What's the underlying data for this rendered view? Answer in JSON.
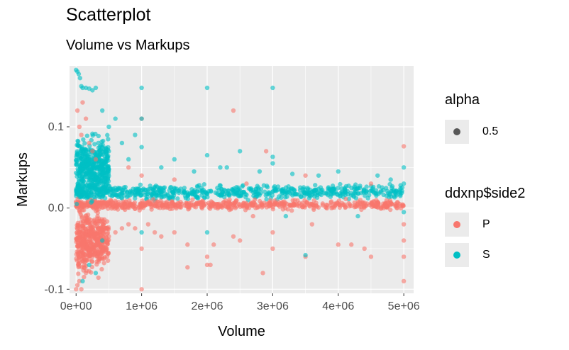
{
  "chart_data": {
    "type": "scatter",
    "title": "Scatterplot",
    "subtitle": "Volume vs Markups",
    "xlabel": "Volume",
    "ylabel": "Markups",
    "xlim": [
      -100000,
      5150000
    ],
    "ylim": [
      -0.105,
      0.175
    ],
    "x_ticks": [
      {
        "value": 0,
        "label": "0e+00"
      },
      {
        "value": 1000000,
        "label": "1e+06"
      },
      {
        "value": 2000000,
        "label": "2e+06"
      },
      {
        "value": 3000000,
        "label": "3e+06"
      },
      {
        "value": 4000000,
        "label": "4e+06"
      },
      {
        "value": 5000000,
        "label": "5e+06"
      }
    ],
    "y_ticks": [
      {
        "value": -0.1,
        "label": "-0.1"
      },
      {
        "value": 0.0,
        "label": "0.0"
      },
      {
        "value": 0.1,
        "label": "0.1"
      }
    ],
    "grid": true,
    "legend_position": "right",
    "series": [
      {
        "name": "P",
        "color": "#F8766D",
        "points": [
          [
            0,
            -0.1
          ],
          [
            20000,
            -0.095
          ],
          [
            50000,
            -0.09
          ],
          [
            80000,
            -0.1
          ],
          [
            120000,
            -0.085
          ],
          [
            150000,
            -0.08
          ],
          [
            30000,
            -0.07
          ],
          [
            60000,
            -0.06
          ],
          [
            100000,
            -0.055
          ],
          [
            200000,
            -0.05
          ],
          [
            300000,
            -0.045
          ],
          [
            400000,
            -0.04
          ],
          [
            250000,
            -0.06
          ],
          [
            350000,
            -0.03
          ],
          [
            500000,
            -0.035
          ],
          [
            600000,
            -0.03
          ],
          [
            700000,
            -0.025
          ],
          [
            800000,
            -0.02
          ],
          [
            900000,
            -0.025
          ],
          [
            1000000,
            -0.05
          ],
          [
            1100000,
            -0.02
          ],
          [
            1200000,
            -0.03
          ],
          [
            1300000,
            -0.035
          ],
          [
            1000000,
            -0.1
          ],
          [
            20000,
            0.12
          ],
          [
            50000,
            0.1
          ],
          [
            80000,
            0.09
          ],
          [
            100000,
            0.13
          ],
          [
            150000,
            0.11
          ],
          [
            200000,
            0.08
          ],
          [
            250000,
            0.07
          ],
          [
            300000,
            0.06
          ],
          [
            1000000,
            0.11
          ],
          [
            1000000,
            0.04
          ],
          [
            1500000,
            -0.03
          ],
          [
            1700000,
            -0.045
          ],
          [
            1700000,
            -0.073
          ],
          [
            2000000,
            -0.06
          ],
          [
            2000000,
            -0.07
          ],
          [
            2050000,
            -0.07
          ],
          [
            2100000,
            -0.045
          ],
          [
            2400000,
            -0.035
          ],
          [
            2500000,
            -0.04
          ],
          [
            2700000,
            -0.01
          ],
          [
            2850000,
            -0.08
          ],
          [
            2900000,
            0.07
          ],
          [
            2400000,
            0.12
          ],
          [
            3000000,
            -0.05
          ],
          [
            3000000,
            -0.03
          ],
          [
            3500000,
            -0.06
          ],
          [
            3600000,
            -0.02
          ],
          [
            4000000,
            -0.045
          ],
          [
            4200000,
            -0.045
          ],
          [
            4400000,
            -0.05
          ],
          [
            4500000,
            -0.06
          ],
          [
            4500000,
            0.03
          ],
          [
            5000000,
            -0.06
          ],
          [
            5000000,
            -0.09
          ],
          [
            5000000,
            0.076
          ],
          [
            5000000,
            -0.04
          ],
          [
            5000000,
            -0.02
          ],
          [
            3500000,
            0.04
          ],
          [
            2600000,
            0.03
          ],
          [
            1500000,
            0.035
          ],
          [
            800000,
            0.05
          ]
        ]
      },
      {
        "name": "S",
        "color": "#00BFC4",
        "points": [
          [
            0,
            0.17
          ],
          [
            20000,
            0.168
          ],
          [
            40000,
            0.165
          ],
          [
            60000,
            0.16
          ],
          [
            80000,
            0.15
          ],
          [
            100000,
            0.148
          ],
          [
            150000,
            0.148
          ],
          [
            200000,
            0.147
          ],
          [
            250000,
            0.145
          ],
          [
            300000,
            0.148
          ],
          [
            1000000,
            0.148
          ],
          [
            2000000,
            0.148
          ],
          [
            3000000,
            0.148
          ],
          [
            1000000,
            0.11
          ],
          [
            1000000,
            0.075
          ],
          [
            900000,
            0.09
          ],
          [
            600000,
            0.11
          ],
          [
            400000,
            0.12
          ],
          [
            500000,
            0.1
          ],
          [
            700000,
            0.08
          ],
          [
            2000000,
            0.065
          ],
          [
            3000000,
            0.063
          ],
          [
            3000000,
            0.055
          ],
          [
            2500000,
            0.07
          ],
          [
            1500000,
            0.06
          ],
          [
            2200000,
            0.05
          ],
          [
            3500000,
            -0.058
          ],
          [
            2000000,
            -0.03
          ],
          [
            1000000,
            -0.03
          ],
          [
            400000,
            -0.04
          ],
          [
            300000,
            -0.08
          ],
          [
            200000,
            -0.07
          ],
          [
            100000,
            -0.09
          ],
          [
            3200000,
            -0.01
          ],
          [
            4300000,
            -0.01
          ],
          [
            5000000,
            0.05
          ],
          [
            5000000,
            0.03
          ],
          [
            5000000,
            -0.005
          ],
          [
            4800000,
            0.035
          ],
          [
            4600000,
            0.04
          ],
          [
            4000000,
            0.045
          ],
          [
            3700000,
            0.04
          ],
          [
            3300000,
            0.042
          ],
          [
            2800000,
            0.045
          ],
          [
            2300000,
            0.05
          ],
          [
            1800000,
            0.045
          ],
          [
            1300000,
            0.05
          ],
          [
            800000,
            0.06
          ],
          [
            500000,
            0.07
          ]
        ]
      }
    ],
    "dense_bands": [
      {
        "series": "S",
        "x_from": 0,
        "x_to": 5000000,
        "y_center": 0.02,
        "y_spread": 0.012
      },
      {
        "series": "P",
        "x_from": 0,
        "x_to": 5000000,
        "y_center": 0.004,
        "y_spread": 0.008
      },
      {
        "series": "P",
        "x_from": 0,
        "x_to": 500000,
        "y_center": -0.04,
        "y_spread": 0.05
      },
      {
        "series": "S",
        "x_from": 0,
        "x_to": 500000,
        "y_center": 0.05,
        "y_spread": 0.05
      }
    ],
    "alpha_legend": {
      "title": "alpha",
      "label": "0.5"
    },
    "color_legend": {
      "title": "ddxnp$side2",
      "labels": [
        "P",
        "S"
      ]
    }
  }
}
